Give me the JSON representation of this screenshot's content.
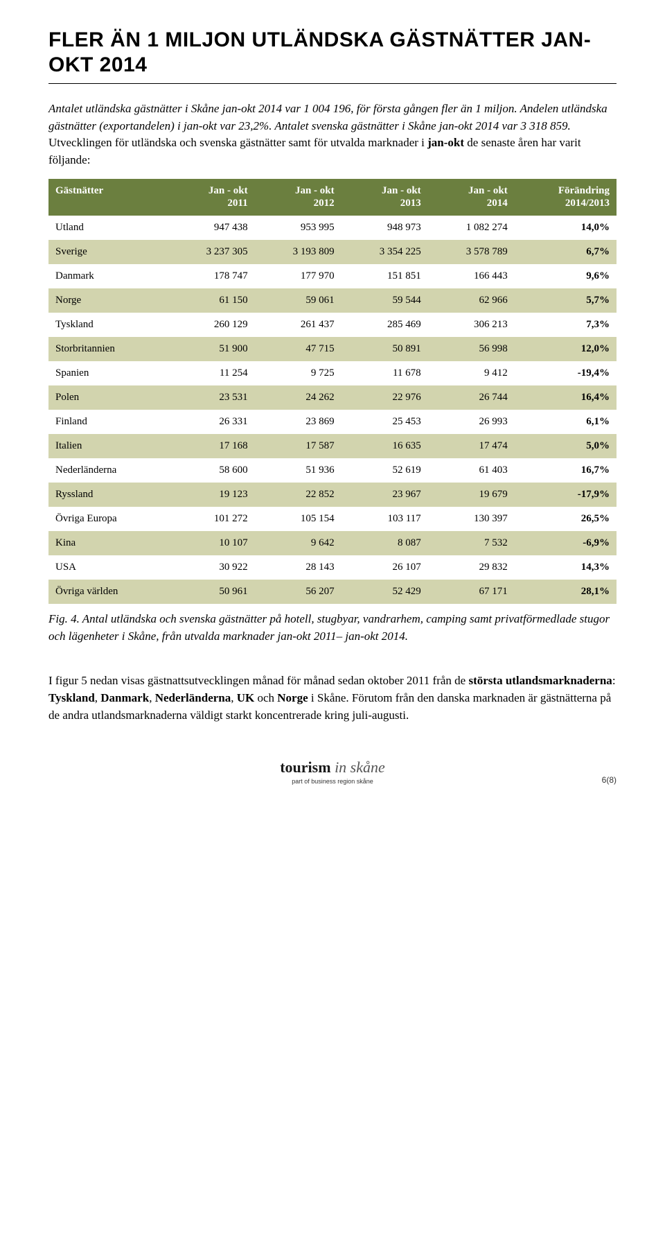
{
  "title": "FLER ÄN 1 MILJON UTLÄNDSKA GÄSTNÄTTER JAN-OKT 2014",
  "intro_html": "<em>Antalet utländska gästnätter i Skåne jan-okt 2014 var 1 004 196, för första gången fler än 1 miljon. Andelen utländska gästnätter (exportandelen) i jan-okt var 23,2%. Antalet svenska gästnätter i Skåne jan-okt 2014 var 3 318 859.</em> Utvecklingen för utländska och svenska gästnätter samt för utvalda marknader i <strong>jan-okt</strong> de senaste åren har varit följande:",
  "table": {
    "header_bg": "#6b7f3f",
    "header_fg": "#ffffff",
    "row_even_bg": "#d2d4ae",
    "row_odd_bg": "#ffffff",
    "columns": [
      {
        "key": "country",
        "label": "Gästnätter",
        "align": "left"
      },
      {
        "key": "c2011",
        "label": "Jan - okt\n2011",
        "align": "right"
      },
      {
        "key": "c2012",
        "label": "Jan - okt\n2012",
        "align": "right"
      },
      {
        "key": "c2013",
        "label": "Jan - okt\n2013",
        "align": "right"
      },
      {
        "key": "c2014",
        "label": "Jan - okt\n2014",
        "align": "right"
      },
      {
        "key": "change",
        "label": "Förändring\n2014/2013",
        "align": "right"
      }
    ],
    "rows": [
      {
        "country": "Utland",
        "c2011": "947 438",
        "c2012": "953 995",
        "c2013": "948 973",
        "c2014": "1 082 274",
        "change": "14,0%"
      },
      {
        "country": "Sverige",
        "c2011": "3 237 305",
        "c2012": "3 193 809",
        "c2013": "3 354 225",
        "c2014": "3 578 789",
        "change": "6,7%"
      },
      {
        "country": "Danmark",
        "c2011": "178 747",
        "c2012": "177 970",
        "c2013": "151 851",
        "c2014": "166 443",
        "change": "9,6%"
      },
      {
        "country": "Norge",
        "c2011": "61 150",
        "c2012": "59 061",
        "c2013": "59 544",
        "c2014": "62 966",
        "change": "5,7%"
      },
      {
        "country": "Tyskland",
        "c2011": "260 129",
        "c2012": "261 437",
        "c2013": "285 469",
        "c2014": "306 213",
        "change": "7,3%"
      },
      {
        "country": "Storbritannien",
        "c2011": "51 900",
        "c2012": "47 715",
        "c2013": "50 891",
        "c2014": "56 998",
        "change": "12,0%"
      },
      {
        "country": "Spanien",
        "c2011": "11 254",
        "c2012": "9 725",
        "c2013": "11 678",
        "c2014": "9 412",
        "change": "-19,4%"
      },
      {
        "country": "Polen",
        "c2011": "23 531",
        "c2012": "24 262",
        "c2013": "22 976",
        "c2014": "26 744",
        "change": "16,4%"
      },
      {
        "country": "Finland",
        "c2011": "26 331",
        "c2012": "23 869",
        "c2013": "25 453",
        "c2014": "26 993",
        "change": "6,1%"
      },
      {
        "country": "Italien",
        "c2011": "17 168",
        "c2012": "17 587",
        "c2013": "16 635",
        "c2014": "17 474",
        "change": "5,0%"
      },
      {
        "country": "Nederländerna",
        "c2011": "58 600",
        "c2012": "51 936",
        "c2013": "52 619",
        "c2014": "61 403",
        "change": "16,7%"
      },
      {
        "country": "Ryssland",
        "c2011": "19 123",
        "c2012": "22 852",
        "c2013": "23 967",
        "c2014": "19 679",
        "change": "-17,9%"
      },
      {
        "country": "Övriga Europa",
        "c2011": "101 272",
        "c2012": "105 154",
        "c2013": "103 117",
        "c2014": "130 397",
        "change": "26,5%"
      },
      {
        "country": "Kina",
        "c2011": "10 107",
        "c2012": "9 642",
        "c2013": "8 087",
        "c2014": "7 532",
        "change": "-6,9%"
      },
      {
        "country": "USA",
        "c2011": "30 922",
        "c2012": "28 143",
        "c2013": "26 107",
        "c2014": "29 832",
        "change": "14,3%"
      },
      {
        "country": "Övriga världen",
        "c2011": "50 961",
        "c2012": "56 207",
        "c2013": "52 429",
        "c2014": "67 171",
        "change": "28,1%"
      }
    ]
  },
  "caption": "Fig. 4. Antal utländska och svenska gästnätter på hotell, stugbyar, vandrarhem, camping samt privatförmedlade stugor och lägenheter i Skåne, från utvalda marknader jan-okt 2011– jan-okt 2014.",
  "body_html": "I figur 5 nedan visas gästnattsutvecklingen månad för månad sedan oktober 2011 från de <strong>största utlandsmarknaderna</strong>: <strong>Tyskland</strong>, <strong>Danmark</strong>, <strong>Nederländerna</strong>, <strong>UK</strong> och <strong>Norge</strong> i Skåne. Förutom från den danska marknaden är gästnätterna på de andra utlandsmarknaderna väldigt starkt koncentrerade kring juli-augusti.",
  "footer": {
    "logo_bold": "tourism",
    "logo_light": " in skåne",
    "tagline": "part of business region skåne",
    "page": "6(8)"
  }
}
